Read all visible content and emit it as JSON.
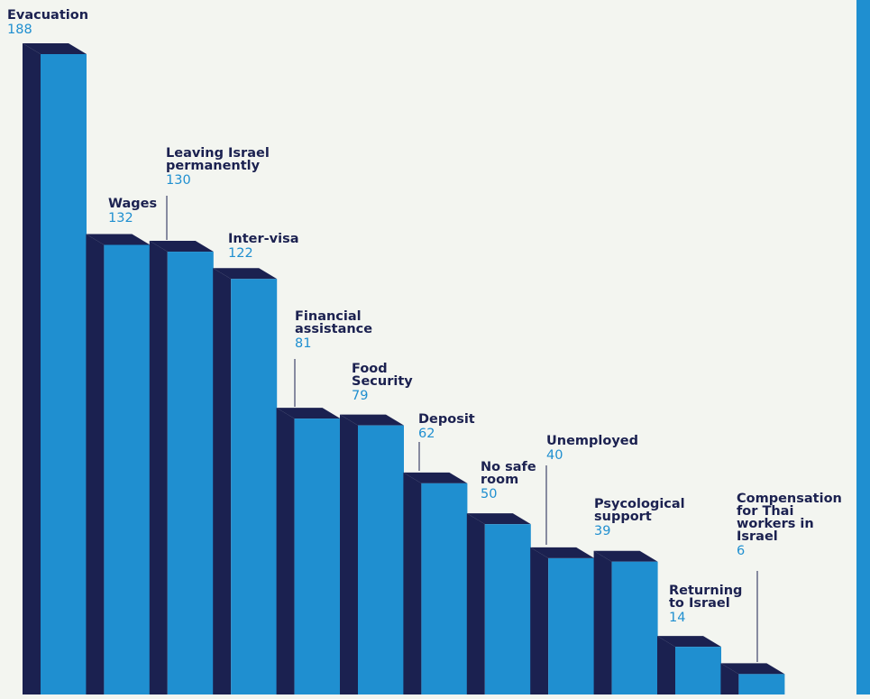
{
  "colors": {
    "background": "#f3f5f0",
    "bar_front": "#1f8fd0",
    "bar_side": "#1b2150",
    "label_name": "#1b2150",
    "label_value": "#1f8fd0",
    "accent_stripe": "#1f8fd0"
  },
  "chart_data": {
    "type": "bar",
    "style": "3d-stepped",
    "categories": [
      [
        "Evacuation"
      ],
      [
        "Wages"
      ],
      [
        "Leaving Israel",
        "permanently"
      ],
      [
        "Inter-visa"
      ],
      [
        "Financial",
        "assistance"
      ],
      [
        "Food",
        "Security"
      ],
      [
        "Deposit"
      ],
      [
        "No safe",
        "room"
      ],
      [
        "Unemployed"
      ],
      [
        "Psycological",
        "support"
      ],
      [
        "Returning",
        "to Israel"
      ],
      [
        "Compensation",
        "for Thai",
        "workers in",
        "Israel"
      ]
    ],
    "values": [
      188,
      132,
      130,
      122,
      81,
      79,
      62,
      50,
      40,
      39,
      14,
      6
    ],
    "value_labels": [
      "188",
      "132",
      "130",
      "122",
      "81",
      "79",
      "62",
      "50",
      "40",
      "39",
      "14",
      "6"
    ],
    "ylim": [
      0,
      188
    ],
    "grid": false,
    "legend": "none"
  }
}
